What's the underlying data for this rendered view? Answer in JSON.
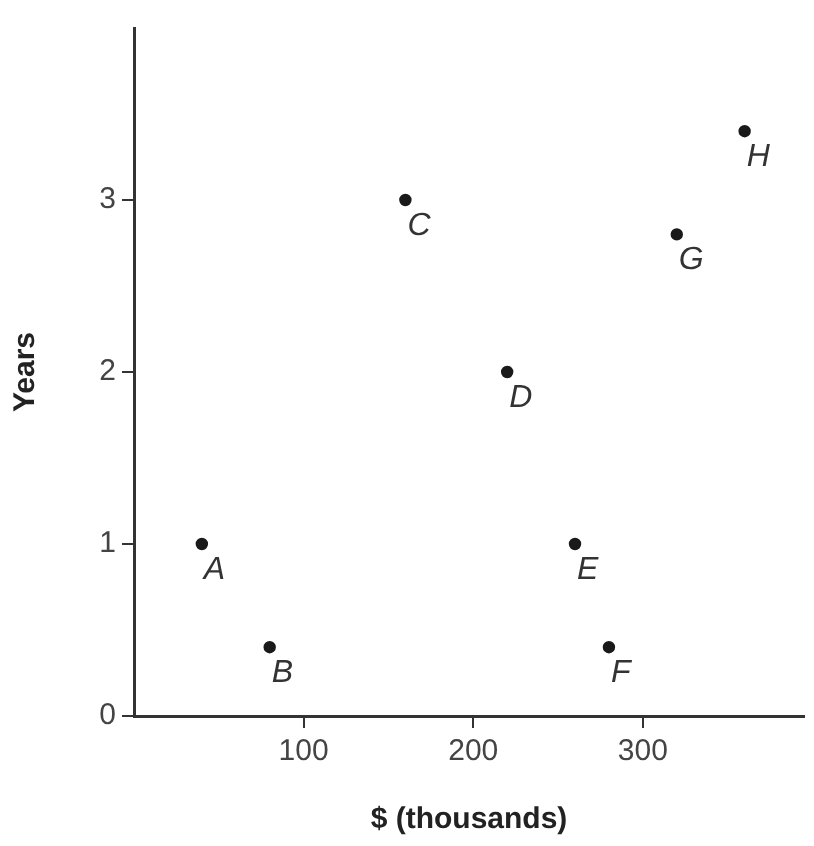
{
  "chart_data": {
    "type": "scatter",
    "xlabel": "$ (thousands)",
    "ylabel": "Years",
    "x": [
      40,
      80,
      160,
      220,
      260,
      280,
      320,
      360
    ],
    "values": [
      1,
      0.4,
      3,
      2,
      1,
      0.4,
      2.8,
      3.4
    ],
    "color": "#1a1a1a",
    "marker": "circle",
    "grid": false,
    "legend": false,
    "xlim": [
      0,
      395
    ],
    "ylim": [
      0,
      4
    ],
    "xticks": [
      100,
      200,
      300
    ],
    "yticks": [
      0,
      1,
      2,
      3
    ],
    "annotations": [
      {
        "text": "A",
        "x": 40,
        "y": 1
      },
      {
        "text": "B",
        "x": 80,
        "y": 0.4
      },
      {
        "text": "C",
        "x": 160,
        "y": 3
      },
      {
        "text": "D",
        "x": 220,
        "y": 2
      },
      {
        "text": "E",
        "x": 260,
        "y": 1
      },
      {
        "text": "F",
        "x": 280,
        "y": 0.4
      },
      {
        "text": "G",
        "x": 320,
        "y": 2.8
      },
      {
        "text": "H",
        "x": 360,
        "y": 3.4
      }
    ]
  }
}
